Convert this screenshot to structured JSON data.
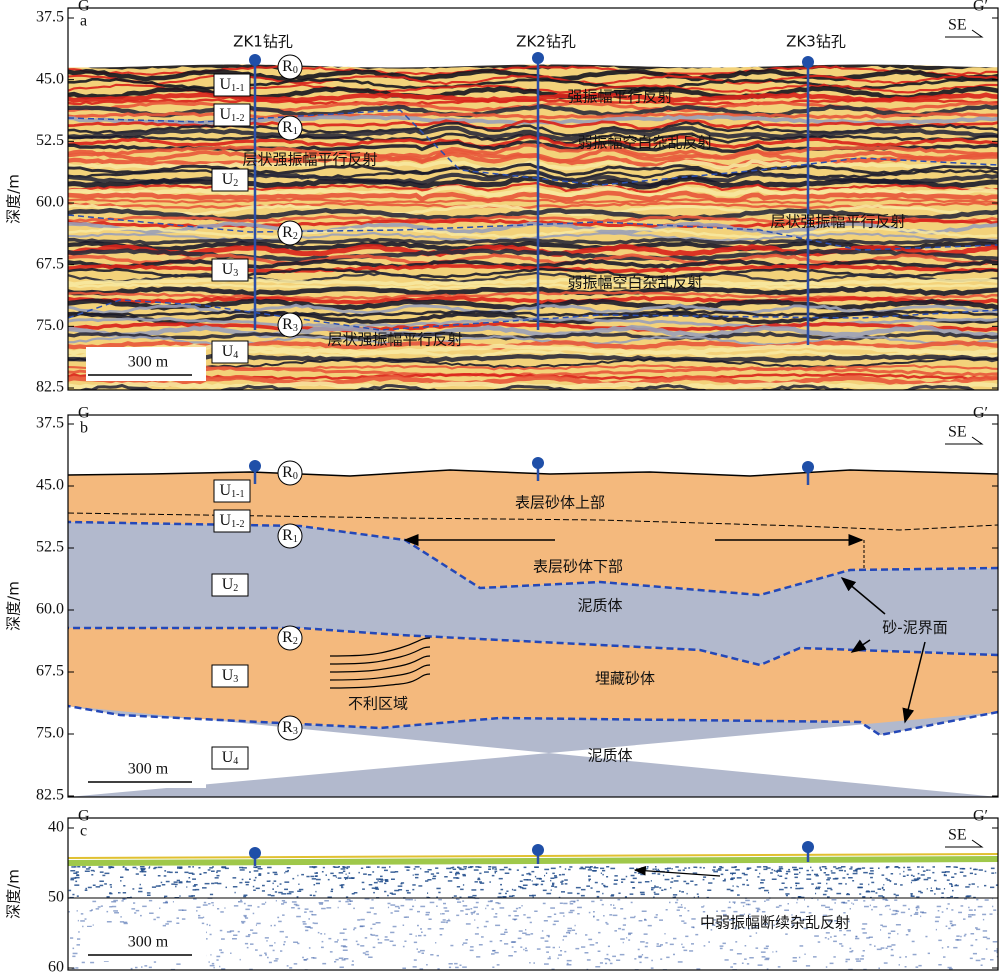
{
  "panels": [
    {
      "label": "a",
      "left": "G",
      "right": "G′",
      "direction": "SE",
      "y_axis_label": "深度/m",
      "ylim": [
        37.5,
        82.5
      ],
      "yticks": [
        {
          "value": 37.5,
          "label": "37.5"
        },
        {
          "value": 45,
          "label": "45.0"
        },
        {
          "value": 52.5,
          "label": "52.5"
        },
        {
          "value": 60,
          "label": "60.0"
        },
        {
          "value": 67.5,
          "label": "67.5"
        },
        {
          "value": 75,
          "label": "75.0"
        },
        {
          "value": 82.5,
          "label": "82.5"
        }
      ],
      "scale_bar": "300 m",
      "wells": [
        "ZK1钻孔",
        "ZK2钻孔",
        "ZK3钻孔"
      ],
      "units": [
        {
          "base": "U",
          "sub": "1-1"
        },
        {
          "base": "U",
          "sub": "1-2"
        },
        {
          "base": "U",
          "sub": "2"
        },
        {
          "base": "U",
          "sub": "3"
        },
        {
          "base": "U",
          "sub": "4"
        }
      ],
      "reflectors": [
        {
          "base": "R",
          "sub": "0"
        },
        {
          "base": "R",
          "sub": "1"
        },
        {
          "base": "R",
          "sub": "2"
        },
        {
          "base": "R",
          "sub": "3"
        }
      ],
      "annotations": [
        "强振幅平行反射",
        "弱振幅空白杂乱反射",
        "层状强振幅平行反射",
        "层状强振幅平行反射",
        "弱振幅空白杂乱反射",
        "层状强振幅平行反射"
      ]
    },
    {
      "label": "b",
      "left": "G",
      "right": "G′",
      "direction": "SE",
      "y_axis_label": "深度/m",
      "ylim": [
        37.5,
        82.5
      ],
      "yticks": [
        {
          "value": 37.5,
          "label": "37.5"
        },
        {
          "value": 45,
          "label": "45.0"
        },
        {
          "value": 52.5,
          "label": "52.5"
        },
        {
          "value": 60,
          "label": "60.0"
        },
        {
          "value": 67.5,
          "label": "67.5"
        },
        {
          "value": 75,
          "label": "75.0"
        },
        {
          "value": 82.5,
          "label": "82.5"
        }
      ],
      "scale_bar": "300 m",
      "units": [
        {
          "base": "U",
          "sub": "1-1"
        },
        {
          "base": "U",
          "sub": "1-2"
        },
        {
          "base": "U",
          "sub": "2"
        },
        {
          "base": "U",
          "sub": "3"
        },
        {
          "base": "U",
          "sub": "4"
        }
      ],
      "reflectors": [
        {
          "base": "R",
          "sub": "0"
        },
        {
          "base": "R",
          "sub": "1"
        },
        {
          "base": "R",
          "sub": "2"
        },
        {
          "base": "R",
          "sub": "3"
        }
      ],
      "annotations": [
        "表层砂体上部",
        "表层砂体下部",
        "泥质体",
        "埋藏砂体",
        "不利区域",
        "泥质体",
        "砂-泥界面"
      ]
    },
    {
      "label": "c",
      "left": "G",
      "right": "G′",
      "direction": "SE",
      "y_axis_label": "深度/m",
      "ylim": [
        40,
        60
      ],
      "yticks": [
        40,
        50,
        60
      ],
      "scale_bar": "300 m",
      "annotations": [
        "中弱振幅断续杂乱反射"
      ]
    }
  ]
}
